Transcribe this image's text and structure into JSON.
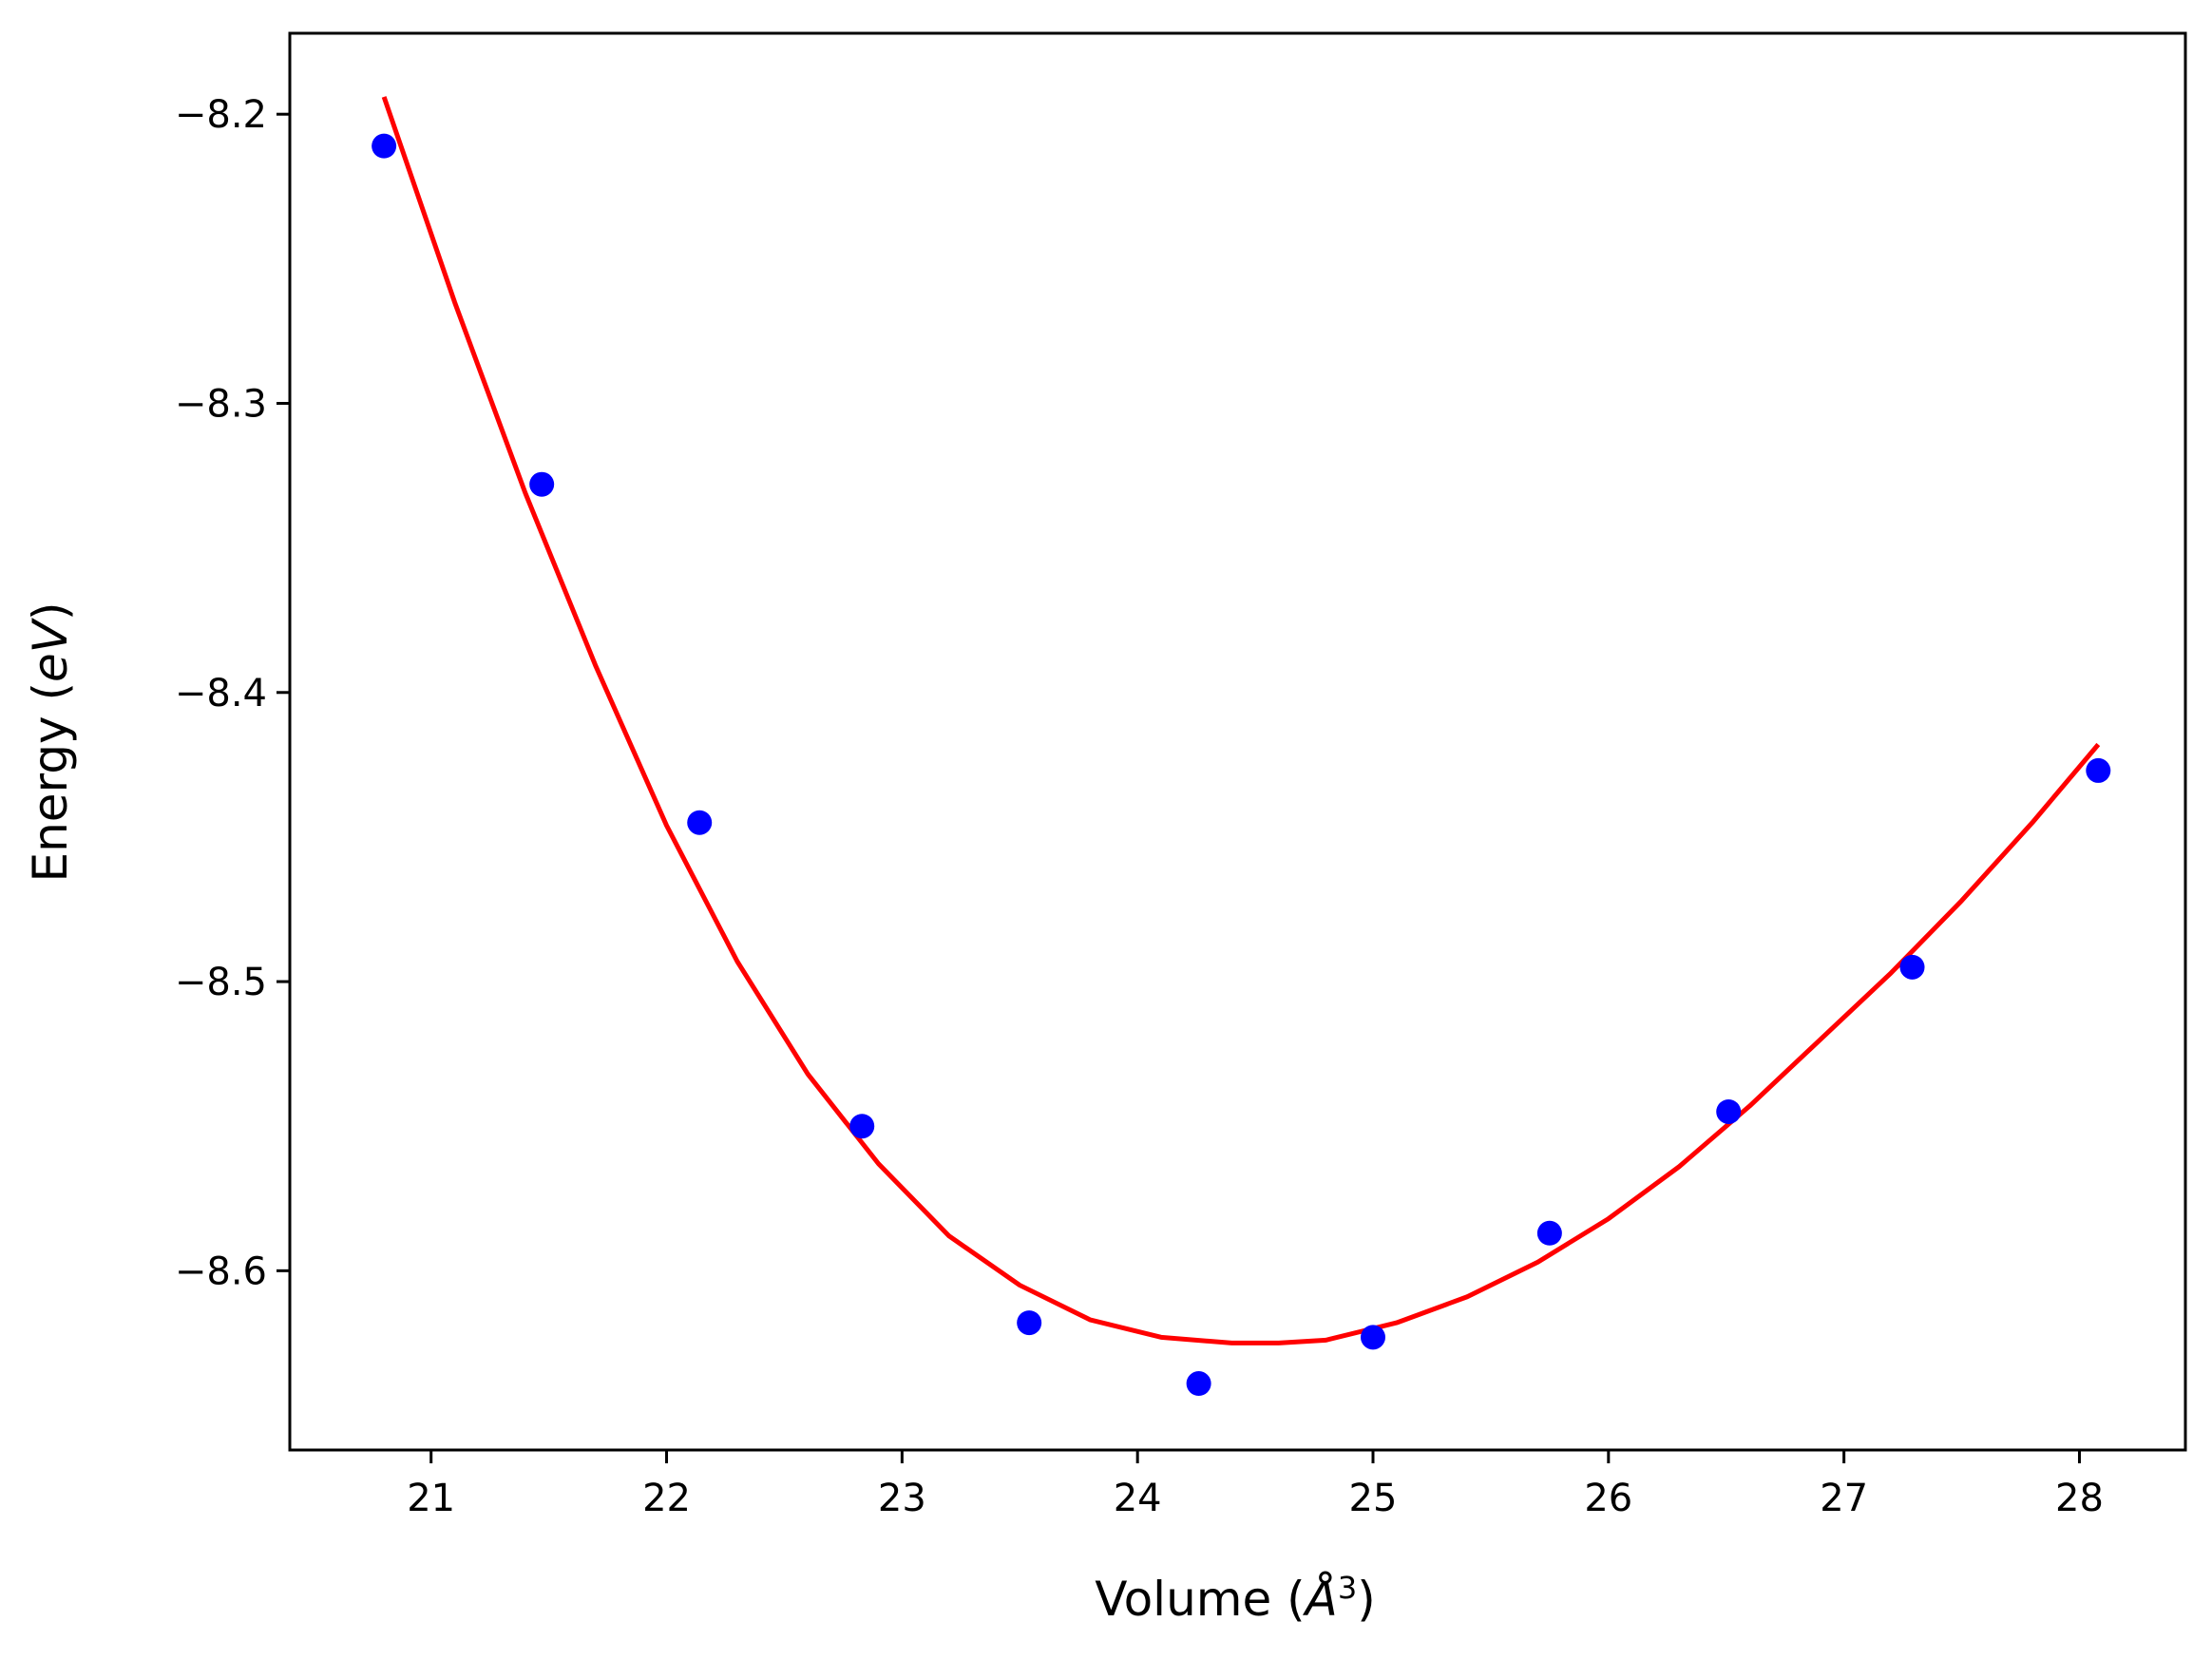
{
  "chart_data": {
    "type": "scatter",
    "title": "",
    "xlabel": {
      "prefix": "Volume (",
      "symbol": "Å",
      "superscript": "3",
      "suffix": ")"
    },
    "ylabel": {
      "prefix": "Energy (",
      "symbol": "eV",
      "suffix": ")"
    },
    "xlim": [
      20.4,
      28.45
    ],
    "ylim": [
      -8.662,
      -8.172
    ],
    "xticks": [
      21,
      22,
      23,
      24,
      25,
      26,
      27,
      28
    ],
    "xtick_labels": [
      "21",
      "22",
      "23",
      "24",
      "25",
      "26",
      "27",
      "28"
    ],
    "yticks": [
      -8.2,
      -8.3,
      -8.4,
      -8.5,
      -8.6
    ],
    "ytick_labels": [
      "−8.2",
      "−8.3",
      "−8.4",
      "−8.5",
      "−8.6"
    ],
    "grid": false,
    "series": [
      {
        "kind": "points",
        "color": "#0000ff",
        "x": [
          20.8,
          21.47,
          22.14,
          22.83,
          23.54,
          24.26,
          25.0,
          25.75,
          26.51,
          27.29,
          28.08
        ],
        "y": [
          -8.211,
          -8.328,
          -8.445,
          -8.55,
          -8.618,
          -8.639,
          -8.623,
          -8.587,
          -8.545,
          -8.495,
          -8.427
        ]
      },
      {
        "kind": "line",
        "color": "#ff0000",
        "x": [
          20.8,
          21.1,
          21.4,
          21.7,
          22.0,
          22.3,
          22.6,
          22.9,
          23.2,
          23.5,
          23.8,
          24.1,
          24.4,
          24.6,
          24.8,
          25.1,
          25.4,
          25.7,
          26.0,
          26.3,
          26.6,
          26.9,
          27.2,
          27.5,
          27.8,
          28.08
        ],
        "y": [
          -8.194,
          -8.265,
          -8.331,
          -8.391,
          -8.446,
          -8.493,
          -8.532,
          -8.563,
          -8.588,
          -8.605,
          -8.617,
          -8.623,
          -8.625,
          -8.625,
          -8.624,
          -8.618,
          -8.609,
          -8.597,
          -8.582,
          -8.564,
          -8.543,
          -8.52,
          -8.497,
          -8.472,
          -8.445,
          -8.418
        ]
      }
    ]
  }
}
